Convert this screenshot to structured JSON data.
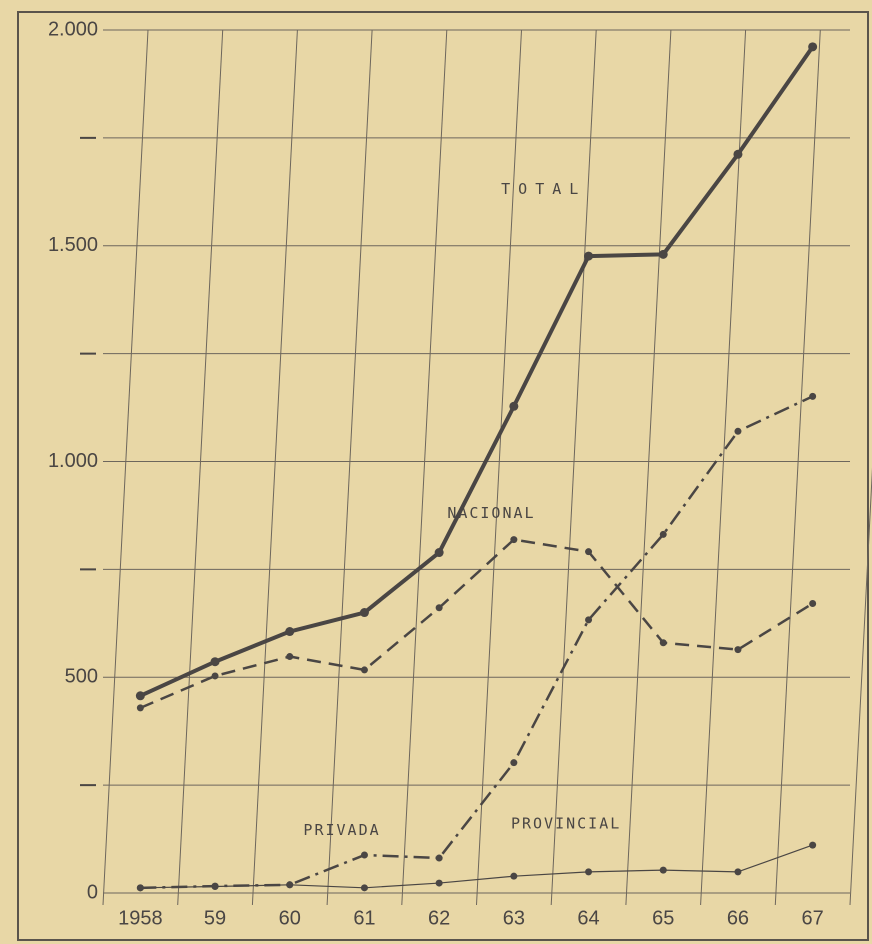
{
  "chart_data": {
    "type": "line",
    "categories": [
      "1958",
      "59",
      "60",
      "61",
      "62",
      "63",
      "64",
      "65",
      "66",
      "67"
    ],
    "series": [
      {
        "name": "TOTAL",
        "color": "#4a4644",
        "line_style": "solid",
        "values": [
          457,
          536,
          606,
          650,
          789,
          1128,
          1476,
          1480,
          1712,
          1961
        ]
      },
      {
        "name": "NACIONAL",
        "color": "#4a4644",
        "line_style": "dashed",
        "values": [
          429,
          503,
          548,
          517,
          661,
          819,
          791,
          580,
          564,
          671
        ]
      },
      {
        "name": "PRIVADA",
        "color": "#4a4644",
        "line_style": "dashdot",
        "values": [
          12,
          16,
          19,
          88,
          81,
          302,
          633,
          831,
          1070,
          1151
        ]
      },
      {
        "name": "PROVINCIAL",
        "color": "#4a4644",
        "line_style": "thin",
        "values": [
          12,
          15,
          19,
          12,
          23,
          39,
          49,
          53,
          49,
          111
        ]
      }
    ],
    "ylim": [
      0,
      2000
    ],
    "yticks": [
      0,
      500,
      {
        "value": 1000,
        "label": "1.000"
      },
      {
        "value": 1500,
        "label": "1.500"
      },
      {
        "value": 2000,
        "label": "2.000"
      }
    ],
    "minor_yticks": [
      250,
      750,
      1250,
      1750
    ],
    "grid": true
  }
}
